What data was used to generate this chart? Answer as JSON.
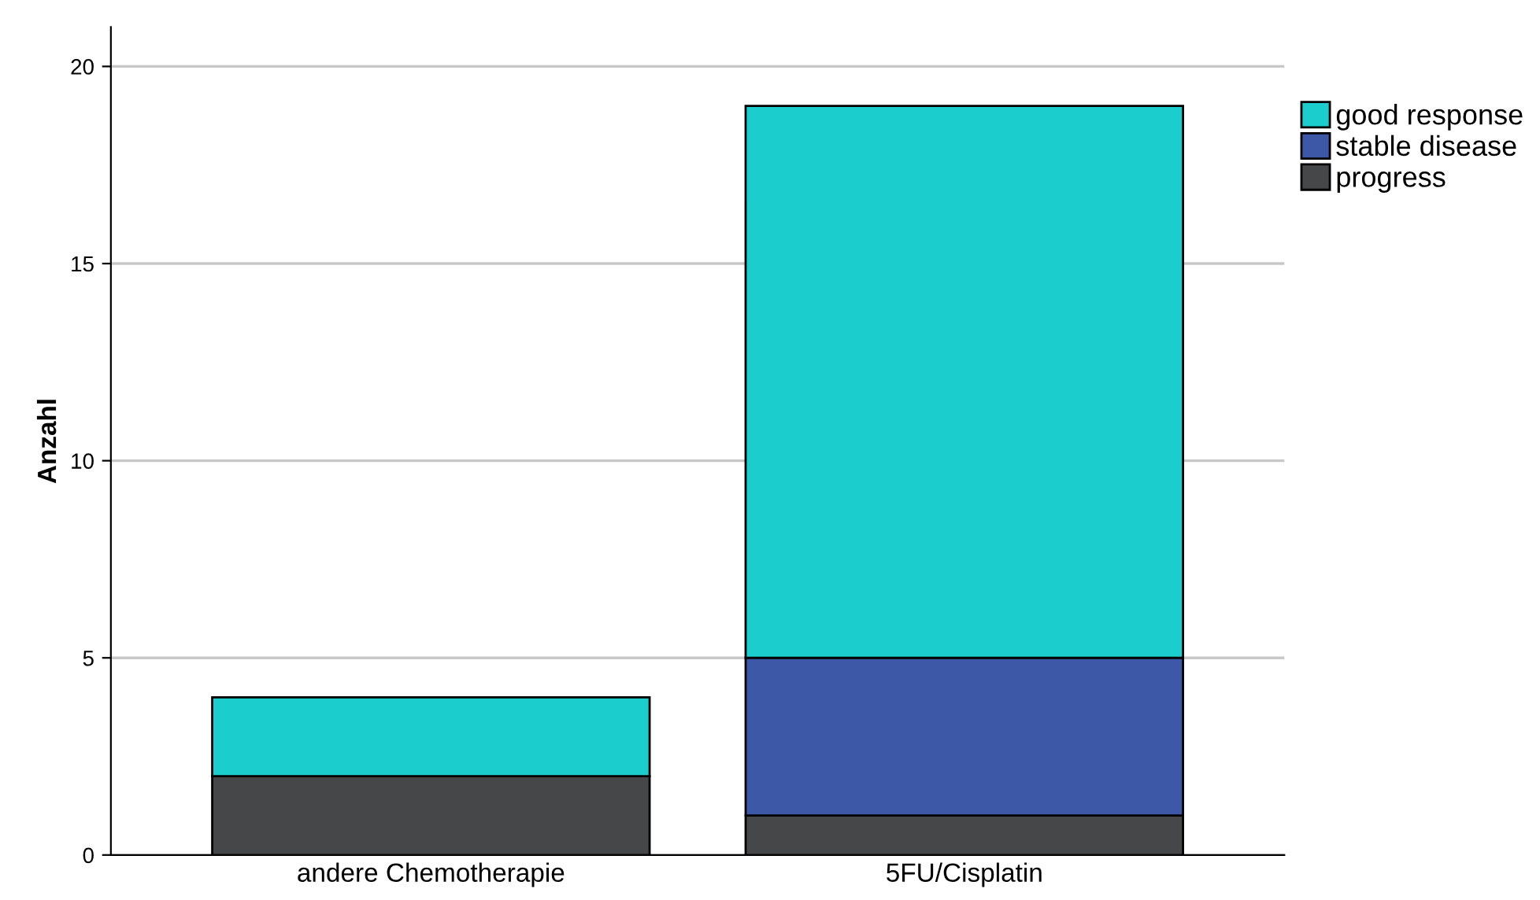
{
  "chart_data": {
    "type": "bar",
    "stacked": true,
    "ylabel": "Anzahl",
    "categories": [
      "andere Chemotherapie",
      "5FU/Cisplatin"
    ],
    "series": [
      {
        "name": "progress",
        "color": "#454748",
        "values": [
          2,
          1
        ]
      },
      {
        "name": "stable disease",
        "color": "#3e58a8",
        "values": [
          0,
          4
        ]
      },
      {
        "name": "good response",
        "color": "#1ccdcd",
        "values": [
          2,
          14
        ]
      }
    ],
    "ylim": [
      0,
      21
    ],
    "yticks": [
      0,
      5,
      10,
      15,
      20
    ],
    "grid": "y",
    "legend": "top right"
  }
}
